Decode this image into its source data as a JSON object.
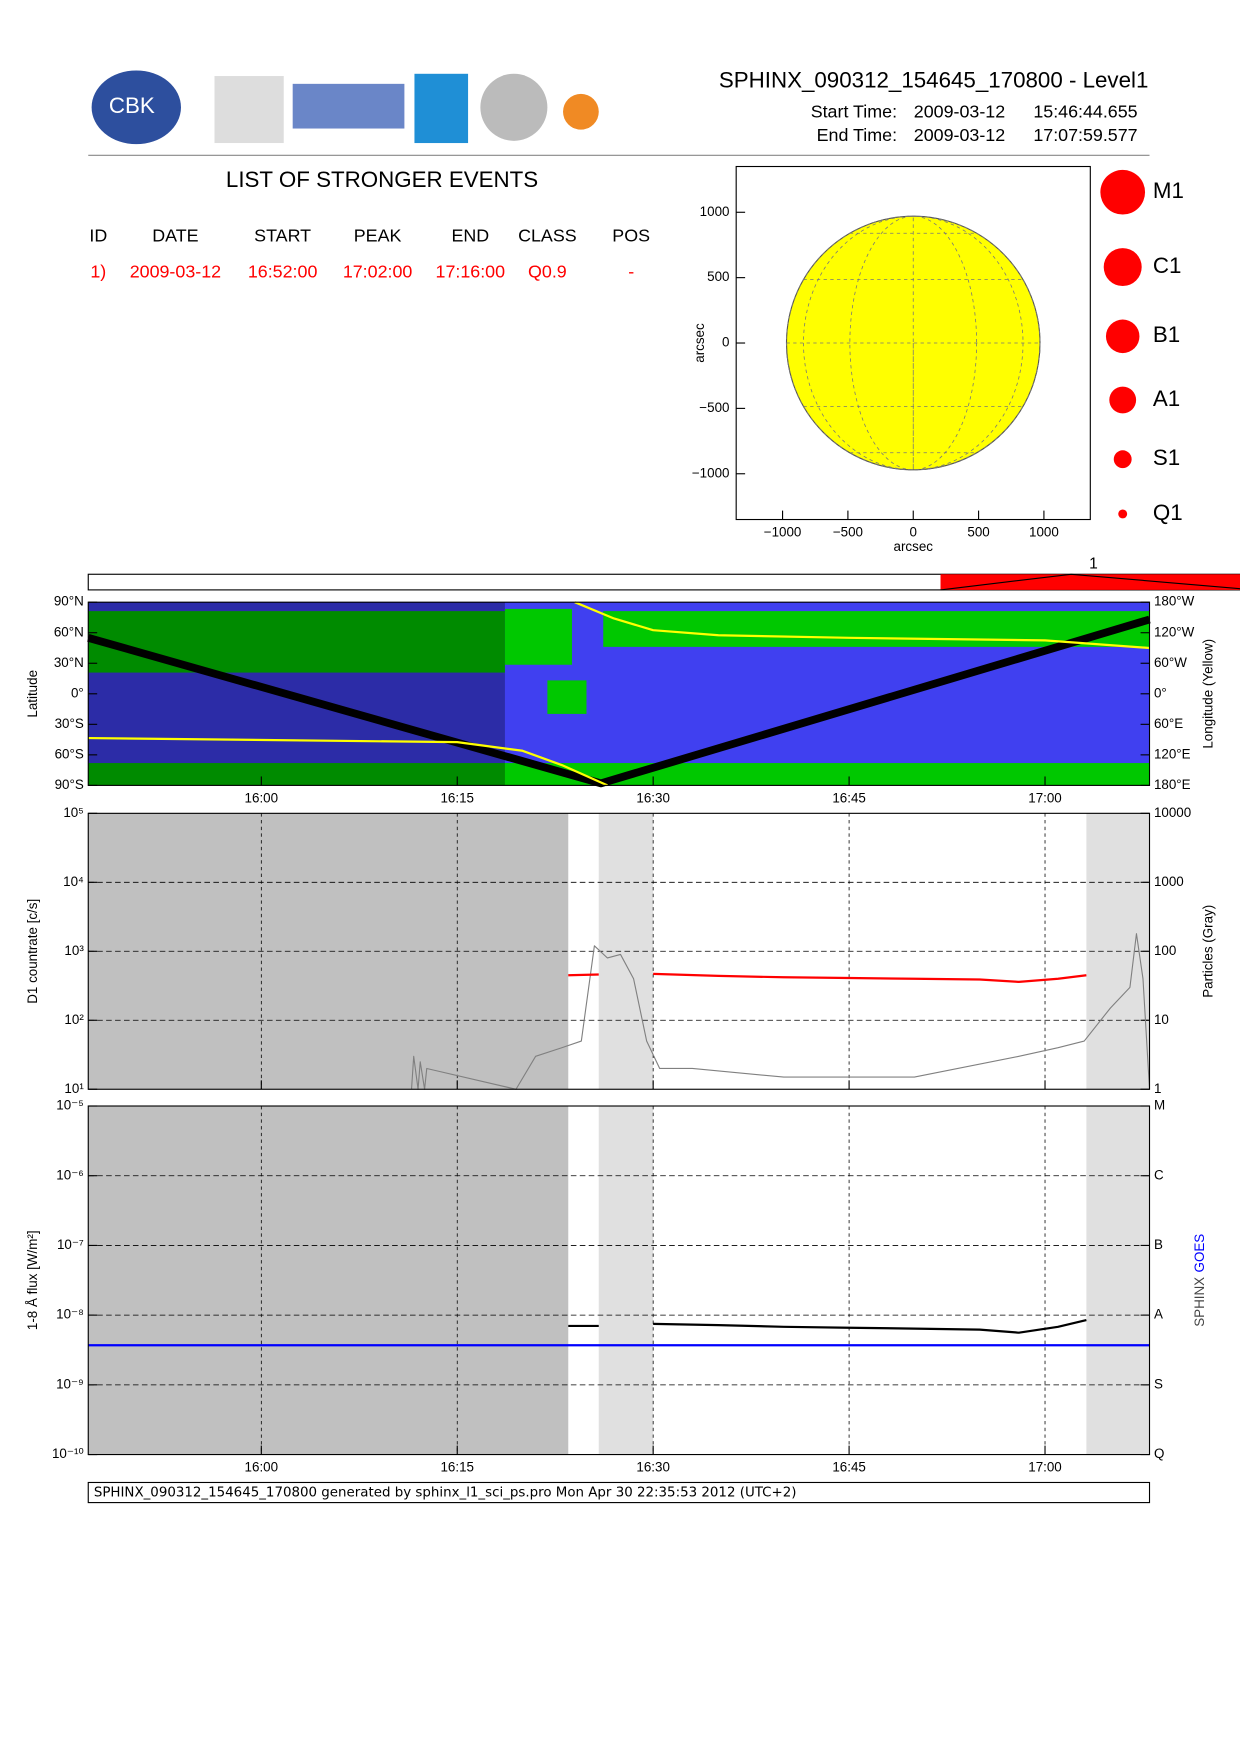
{
  "header": {
    "title": "SPHINX_090312_154645_170800 - Level1",
    "start_label": "Start Time:",
    "start_date": "2009-03-12",
    "start_time": "15:46:44.655",
    "end_label": "End Time:",
    "end_date": "2009-03-12",
    "end_time": "17:07:59.577",
    "logo_text": "CBK"
  },
  "events": {
    "title": "LIST OF STRONGER EVENTS",
    "columns": [
      "ID",
      "DATE",
      "START",
      "PEAK",
      "END",
      "CLASS",
      "POS"
    ],
    "rows": [
      [
        "1)",
        "2009-03-12",
        "16:52:00",
        "17:02:00",
        "17:16:00",
        "Q0.9",
        "-"
      ]
    ],
    "timeline_labels": [
      "1"
    ]
  },
  "class_legend": [
    "M1",
    "C1",
    "B1",
    "A1",
    "S1",
    "Q1"
  ],
  "chart_data": [
    {
      "type": "disk",
      "xlabel": "arcsec",
      "ylabel": "arcsec",
      "solar_radius": 970,
      "xlim": [
        -1355,
        1355
      ],
      "ylim": [
        -1350,
        1350
      ],
      "xticks": [
        {
          "value": -1000,
          "label": "−1000"
        },
        {
          "value": -500,
          "label": "−500"
        },
        0,
        500,
        1000
      ],
      "yticks": [
        {
          "value": -1000,
          "label": "−1000"
        },
        {
          "value": -500,
          "label": "−500"
        },
        0,
        500,
        1000
      ]
    },
    {
      "type": "map",
      "ylabel": "Latitude",
      "y2label": "Longitude (Yellow)",
      "xlim": [
        "15:46:45",
        "17:08:00"
      ],
      "xticks": [
        "16:00",
        "16:15",
        "16:30",
        "16:45",
        "17:00"
      ],
      "ylim": [
        -90,
        90
      ],
      "yticks": [
        {
          "value": 90,
          "label": "90°N"
        },
        {
          "value": 60,
          "label": "60°N"
        },
        {
          "value": 30,
          "label": "30°N"
        },
        {
          "value": 0,
          "label": "0°"
        },
        {
          "value": -30,
          "label": "30°S"
        },
        {
          "value": -60,
          "label": "60°S"
        },
        {
          "value": -90,
          "label": "90°S"
        }
      ],
      "y2lim": [
        -180,
        180
      ],
      "y2ticks": [
        {
          "value": 180,
          "label": "180°W"
        },
        {
          "value": 120,
          "label": "120°W"
        },
        {
          "value": 60,
          "label": "60°W"
        },
        {
          "value": 0,
          "label": "0°"
        },
        {
          "value": -60,
          "label": "60°E"
        },
        {
          "value": -120,
          "label": "120°E"
        },
        {
          "value": -180,
          "label": "180°E"
        }
      ],
      "series": [
        {
          "color": "#000000",
          "x": [
            "15:46:45",
            "16:26:00",
            "17:08:00"
          ],
          "values": [
            55,
            -88,
            73
          ]
        },
        {
          "color": "#ffff00",
          "axis": "y2",
          "x": [
            "15:46:45",
            "16:15:00",
            "16:20:00",
            "16:23:00",
            "16:26:30"
          ],
          "values": [
            -87,
            -95,
            -112,
            -140,
            -180
          ]
        },
        {
          "color": "#ffff00",
          "axis": "y2",
          "x": [
            "16:24:00",
            "16:27:00",
            "16:30:00",
            "16:35:00",
            "16:45:00",
            "17:00:00",
            "17:08:00"
          ],
          "values": [
            180,
            148,
            125,
            115,
            110,
            105,
            90
          ]
        }
      ]
    },
    {
      "type": "lightcurve",
      "ylabel": "D1 countrate [c/s]",
      "y2label": "Particles (Gray)",
      "log": true,
      "grid": true,
      "xlim": [
        "15:46:45",
        "17:08:00"
      ],
      "xticks": [
        "16:00",
        "16:15",
        "16:30",
        "16:45",
        "17:00"
      ],
      "ylim": [
        10,
        100000
      ],
      "yticks": [
        {
          "value": 10,
          "label": "10¹"
        },
        {
          "value": 100,
          "label": "10²"
        },
        {
          "value": 1000,
          "label": "10³"
        },
        {
          "value": 10000,
          "label": "10⁴"
        },
        {
          "value": 100000,
          "label": "10⁵"
        }
      ],
      "y2lim": [
        1,
        10000
      ],
      "y2ticks": [
        1,
        10,
        100,
        1000,
        10000
      ],
      "shaded": [
        {
          "start": "15:46:45",
          "end": "16:23:30",
          "color": "#c0c0c0"
        },
        {
          "start": "16:25:50",
          "end": "16:30:00",
          "color": "#e0e0e0"
        },
        {
          "start": "17:03:10",
          "end": "17:08:00",
          "color": "#e0e0e0"
        }
      ],
      "series": [
        {
          "color": "#808080",
          "axis": "y2",
          "x": [
            "16:11:30",
            "16:11:40",
            "16:12:00",
            "16:12:10",
            "16:12:30",
            "16:12:40",
            "16:19:30",
            "16:21:00",
            "16:23:00",
            "16:24:30",
            "16:25:30",
            "16:26:30",
            "16:27:30",
            "16:28:30",
            "16:29:30",
            "16:30:30",
            "16:33:00",
            "16:40:00",
            "16:50:00",
            "16:58:00",
            "17:01:00",
            "17:03:00",
            "17:05:00",
            "17:06:30",
            "17:07:00",
            "17:07:30",
            "17:08:00"
          ],
          "values": [
            1,
            3,
            1,
            2.5,
            1,
            2,
            1,
            3,
            4,
            5,
            120,
            80,
            90,
            40,
            5,
            2,
            2,
            1.5,
            1.5,
            3,
            4,
            5,
            15,
            30,
            180,
            40,
            1
          ]
        },
        {
          "color": "#ff0000",
          "x": [
            "16:23:30",
            "16:25:50",
            "16:25:51",
            "16:30:00",
            "16:35:00",
            "16:40:00",
            "16:45:00",
            "16:50:00",
            "16:55:00",
            "16:58:00",
            "17:01:00",
            "17:03:10"
          ],
          "values": [
            450,
            460,
            null,
            470,
            440,
            420,
            410,
            400,
            390,
            360,
            400,
            450
          ]
        }
      ]
    },
    {
      "type": "lightcurve",
      "ylabel": "1-8 Å flux [W/m²]",
      "log": true,
      "grid": true,
      "xlim": [
        "15:46:45",
        "17:08:00"
      ],
      "xticks": [
        "16:00",
        "16:15",
        "16:30",
        "16:45",
        "17:00"
      ],
      "ylim": [
        1e-10,
        1e-05
      ],
      "yticks": [
        {
          "value": 1e-10,
          "label": "10⁻¹⁰"
        },
        {
          "value": 1e-09,
          "label": "10⁻⁹"
        },
        {
          "value": 1e-08,
          "label": "10⁻⁸"
        },
        {
          "value": 1e-07,
          "label": "10⁻⁷"
        },
        {
          "value": 1e-06,
          "label": "10⁻⁶"
        },
        {
          "value": 1e-05,
          "label": "10⁻⁵"
        }
      ],
      "y2lim": [
        1e-10,
        1e-05
      ],
      "y2ticks": [
        {
          "value": 1e-10,
          "label": "Q"
        },
        {
          "value": 1e-09,
          "label": "S"
        },
        {
          "value": 1e-08,
          "label": "A"
        },
        {
          "value": 1e-07,
          "label": "B"
        },
        {
          "value": 1e-06,
          "label": "C"
        },
        {
          "value": 1e-05,
          "label": "M"
        }
      ],
      "shaded": [
        {
          "start": "15:46:45",
          "end": "16:23:30",
          "color": "#c0c0c0"
        },
        {
          "start": "16:25:50",
          "end": "16:30:00",
          "color": "#e0e0e0"
        },
        {
          "start": "17:03:10",
          "end": "17:08:00",
          "color": "#e0e0e0"
        }
      ],
      "series": [
        {
          "name": "SPHINX",
          "color": "#000000",
          "x": [
            "16:23:30",
            "16:25:50",
            "16:25:51",
            "16:30:00",
            "16:35:00",
            "16:40:00",
            "16:45:00",
            "16:50:00",
            "16:55:00",
            "16:58:00",
            "17:01:00",
            "17:03:10"
          ],
          "values": [
            7e-09,
            7e-09,
            null,
            7.5e-09,
            7.2e-09,
            6.8e-09,
            6.6e-09,
            6.4e-09,
            6.2e-09,
            5.6e-09,
            6.8e-09,
            8.5e-09
          ]
        },
        {
          "name": "GOES",
          "color": "#0000ff",
          "x": [
            "15:46:45",
            "17:08:00"
          ],
          "values": [
            3.7e-09,
            3.7e-09
          ]
        }
      ]
    }
  ],
  "footer": "SPHINX_090312_154645_170800 generated by sphinx_l1_sci_ps.pro Mon Apr 30 22:35:53 2012 (UTC+2)"
}
